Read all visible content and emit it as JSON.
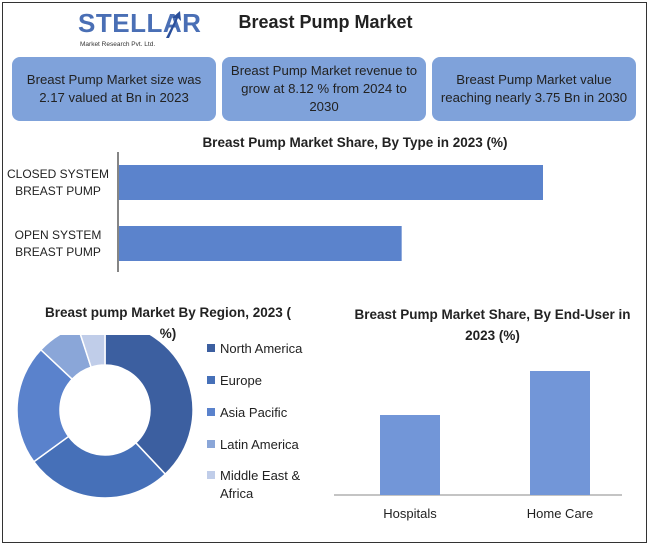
{
  "header": {
    "logo_text": "STELLAR",
    "logo_subtext": "Market Research Pvt. Ltd.",
    "title": "Breast Pump Market"
  },
  "kpis": [
    {
      "text": "Breast Pump Market size was 2.17 valued at Bn in 2023"
    },
    {
      "text": "Breast Pump Market revenue to grow at 8.12 % from 2024 to 2030"
    },
    {
      "text": "Breast Pump Market value reaching nearly 3.75 Bn in 2030"
    }
  ],
  "colors": {
    "kpi_fill": "#7fa2da",
    "bar_type": "#5b83cc",
    "bar_enduser": "#7296d8"
  },
  "chart_data": [
    {
      "type": "bar",
      "orientation": "horizontal",
      "title": "Breast Pump Market Share, By Type in 2023 (%)",
      "categories": [
        "CLOSED SYSTEM BREAST PUMP",
        "OPEN SYSTEM BREAST PUMP"
      ],
      "values": [
        60,
        40
      ],
      "xlim": [
        0,
        75
      ],
      "grid": false,
      "legend": "none"
    },
    {
      "type": "pie",
      "style": "donut",
      "title": "Breast pump Market By Region, 2023 ( %)",
      "categories": [
        "North America",
        "Europe",
        "Asia Pacific",
        "Latin America",
        "Middle East & Africa"
      ],
      "values": [
        38,
        27,
        22,
        8,
        5
      ],
      "colors": [
        "#3c5fa0",
        "#4670b8",
        "#5a82cc",
        "#8aa6d8",
        "#c0cde9"
      ],
      "legend": "right"
    },
    {
      "type": "bar",
      "orientation": "vertical",
      "title": "Breast Pump Market Share, By End-User in 2023 (%)",
      "categories": [
        "Hospitals",
        "Home Care"
      ],
      "values": [
        40,
        62
      ],
      "ylim": [
        0,
        70
      ],
      "grid": false,
      "legend": "none"
    }
  ]
}
